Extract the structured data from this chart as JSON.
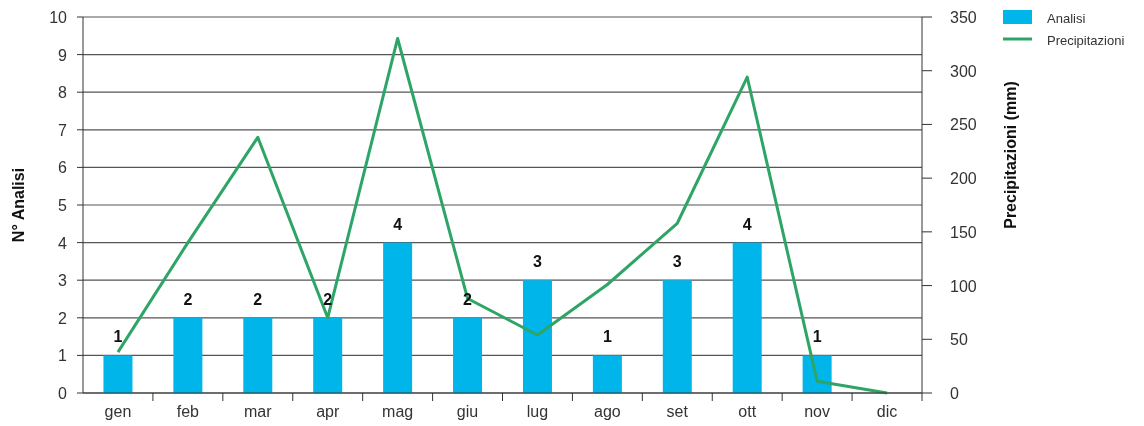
{
  "chart_data": {
    "type": "bar",
    "ylabel": "N° Analisi",
    "y2label": "Precipitazioni (mm)",
    "categories": [
      "gen",
      "feb",
      "mar",
      "apr",
      "mag",
      "giu",
      "lug",
      "ago",
      "set",
      "ott",
      "nov",
      "dic"
    ],
    "series": [
      {
        "name": "Analisi",
        "color": "#00b5ea",
        "values": [
          1,
          2,
          2,
          2,
          4,
          2,
          3,
          1,
          3,
          4,
          1,
          null
        ],
        "value_labels": [
          "1",
          "2",
          "2",
          "2",
          "4",
          "2",
          "3",
          "1",
          "3",
          "4",
          "1",
          null
        ]
      },
      {
        "name": "Precipitazioni",
        "type": "line",
        "axis": "y2",
        "color": "#2ea567",
        "values": [
          38,
          140,
          238,
          70,
          330,
          88,
          54,
          101,
          158,
          294,
          11,
          0
        ]
      }
    ],
    "ylim": [
      0,
      10
    ],
    "yticks": [
      0,
      1,
      2,
      3,
      4,
      5,
      6,
      7,
      8,
      9,
      10
    ],
    "y2lim": [
      0,
      350
    ],
    "y2ticks": [
      0,
      50,
      100,
      150,
      200,
      250,
      300,
      350
    ],
    "grid": "y",
    "legend": "top right",
    "line_style": "solid",
    "marker": "none"
  }
}
